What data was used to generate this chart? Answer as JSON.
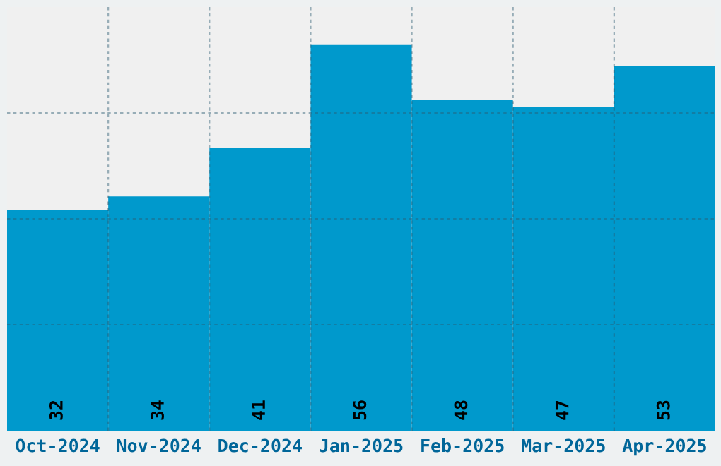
{
  "chart_data": {
    "type": "bar",
    "categories": [
      "Oct-2024",
      "Nov-2024",
      "Dec-2024",
      "Jan-2025",
      "Feb-2025",
      "Mar-2025",
      "Apr-2025"
    ],
    "values": [
      32,
      34,
      41,
      56,
      48,
      47,
      53
    ],
    "color": "#0099cc",
    "ylim": [
      0,
      61.5
    ],
    "yticks": [
      {
        "value": 15.375,
        "label": null
      },
      {
        "value": 30.75,
        "label": null
      },
      {
        "value": 46.125,
        "label": null
      }
    ],
    "grid": true,
    "data_labels": true
  }
}
